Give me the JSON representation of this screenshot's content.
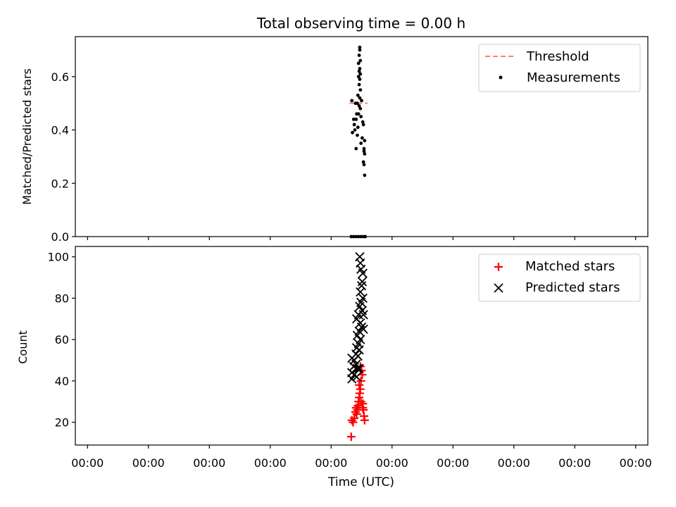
{
  "figure": {
    "title": "Total observing time = 0.00 h"
  },
  "chart_data": [
    {
      "type": "scatter",
      "ylabel": "Matched/Predicted stars",
      "ylim": [
        0,
        0.75
      ],
      "yticks": [
        "0.0",
        "0.2",
        "0.4",
        "0.6"
      ],
      "ytick_values": [
        0,
        0.2,
        0.4,
        0.6
      ],
      "xticks_labeled": false,
      "xlim": [
        -0.2,
        9.2
      ],
      "xtick_values": [
        0,
        1,
        2,
        3,
        4,
        5,
        6,
        7,
        8,
        9
      ],
      "legend": {
        "placement": "upper right",
        "entries": [
          "Threshold",
          "Measurements"
        ]
      },
      "threshold": {
        "name": "Threshold",
        "color": "#ff7f7f",
        "y": 0.5,
        "x": [
          4.3,
          4.6
        ]
      },
      "series": [
        {
          "name": "Measurements",
          "marker": "dot",
          "color": "#000000",
          "points": [
            [
              4.47,
              0.71
            ],
            [
              4.47,
              0.7
            ],
            [
              4.46,
              0.68
            ],
            [
              4.48,
              0.66
            ],
            [
              4.45,
              0.65
            ],
            [
              4.47,
              0.63
            ],
            [
              4.46,
              0.62
            ],
            [
              4.48,
              0.61
            ],
            [
              4.45,
              0.6
            ],
            [
              4.47,
              0.59
            ],
            [
              4.46,
              0.57
            ],
            [
              4.48,
              0.55
            ],
            [
              4.44,
              0.53
            ],
            [
              4.47,
              0.52
            ],
            [
              4.5,
              0.51
            ],
            [
              4.34,
              0.51
            ],
            [
              4.4,
              0.5
            ],
            [
              4.43,
              0.5
            ],
            [
              4.46,
              0.49
            ],
            [
              4.48,
              0.48
            ],
            [
              4.42,
              0.46
            ],
            [
              4.45,
              0.46
            ],
            [
              4.49,
              0.45
            ],
            [
              4.37,
              0.44
            ],
            [
              4.41,
              0.44
            ],
            [
              4.52,
              0.43
            ],
            [
              4.38,
              0.42
            ],
            [
              4.44,
              0.41
            ],
            [
              4.53,
              0.42
            ],
            [
              4.39,
              0.4
            ],
            [
              4.35,
              0.39
            ],
            [
              4.43,
              0.38
            ],
            [
              4.51,
              0.37
            ],
            [
              4.55,
              0.36
            ],
            [
              4.49,
              0.35
            ],
            [
              4.54,
              0.33
            ],
            [
              4.41,
              0.33
            ],
            [
              4.54,
              0.32
            ],
            [
              4.55,
              0.31
            ],
            [
              4.53,
              0.28
            ],
            [
              4.54,
              0.27
            ],
            [
              4.55,
              0.23
            ],
            [
              4.33,
              0.0
            ],
            [
              4.37,
              0.0
            ],
            [
              4.41,
              0.0
            ],
            [
              4.45,
              0.0
            ],
            [
              4.49,
              0.0
            ],
            [
              4.53,
              0.0
            ],
            [
              4.56,
              0.0
            ]
          ]
        }
      ]
    },
    {
      "type": "scatter",
      "ylabel": "Count",
      "xlabel": "Time (UTC)",
      "ylim": [
        9,
        105
      ],
      "yticks": [
        "20",
        "40",
        "60",
        "80",
        "100"
      ],
      "ytick_values": [
        20,
        40,
        60,
        80,
        100
      ],
      "xlim": [
        -0.2,
        9.2
      ],
      "xtick_values": [
        0,
        1,
        2,
        3,
        4,
        5,
        6,
        7,
        8,
        9
      ],
      "xticks": [
        "00:00",
        "00:00",
        "00:00",
        "00:00",
        "00:00",
        "00:00",
        "00:00",
        "00:00",
        "00:00",
        "00:00"
      ],
      "legend": {
        "placement": "upper right",
        "entries": [
          "Matched stars",
          "Predicted stars"
        ]
      },
      "series": [
        {
          "name": "Matched stars",
          "marker": "plus",
          "color": "#ff0000",
          "points": [
            [
              4.33,
              13
            ],
            [
              4.34,
              21
            ],
            [
              4.36,
              20
            ],
            [
              4.38,
              22
            ],
            [
              4.4,
              25
            ],
            [
              4.41,
              27
            ],
            [
              4.43,
              26
            ],
            [
              4.44,
              28
            ],
            [
              4.45,
              30
            ],
            [
              4.46,
              32
            ],
            [
              4.47,
              34
            ],
            [
              4.48,
              36
            ],
            [
              4.46,
              38
            ],
            [
              4.49,
              40
            ],
            [
              4.51,
              43
            ],
            [
              4.5,
              45
            ],
            [
              4.48,
              47
            ],
            [
              4.52,
              29
            ],
            [
              4.53,
              26
            ],
            [
              4.54,
              23
            ],
            [
              4.55,
              21
            ],
            [
              4.52,
              27
            ],
            [
              4.42,
              24
            ],
            [
              4.45,
              28
            ],
            [
              4.49,
              30
            ]
          ]
        },
        {
          "name": "Predicted stars",
          "marker": "x",
          "color": "#000000",
          "points": [
            [
              4.47,
              100
            ],
            [
              4.48,
              97
            ],
            [
              4.49,
              94
            ],
            [
              4.52,
              92
            ],
            [
              4.51,
              88
            ],
            [
              4.5,
              86
            ],
            [
              4.48,
              83
            ],
            [
              4.52,
              80
            ],
            [
              4.49,
              78
            ],
            [
              4.47,
              76
            ],
            [
              4.51,
              74
            ],
            [
              4.53,
              72
            ],
            [
              4.45,
              72
            ],
            [
              4.42,
              70
            ],
            [
              4.48,
              68
            ],
            [
              4.5,
              66
            ],
            [
              4.53,
              65
            ],
            [
              4.46,
              64
            ],
            [
              4.43,
              62
            ],
            [
              4.48,
              60
            ],
            [
              4.45,
              58
            ],
            [
              4.42,
              56
            ],
            [
              4.46,
              55
            ],
            [
              4.41,
              53
            ],
            [
              4.44,
              52
            ],
            [
              4.34,
              51
            ],
            [
              4.38,
              50
            ],
            [
              4.41,
              48
            ],
            [
              4.37,
              47
            ],
            [
              4.43,
              46
            ],
            [
              4.46,
              46
            ],
            [
              4.34,
              44
            ],
            [
              4.38,
              43
            ],
            [
              4.42,
              42
            ],
            [
              4.34,
              41
            ]
          ]
        }
      ]
    }
  ]
}
